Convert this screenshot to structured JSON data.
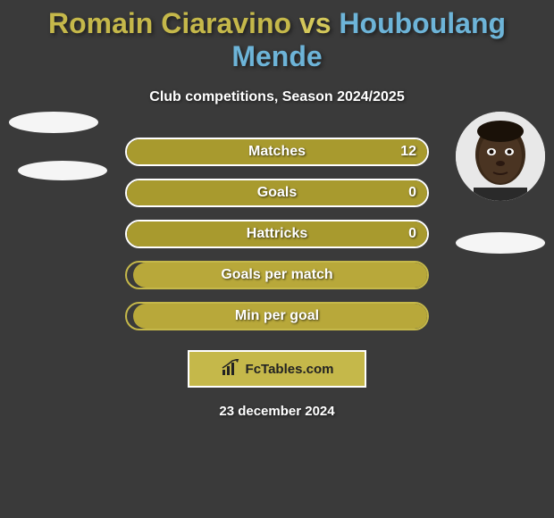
{
  "title": {
    "player1": "Romain Ciaravino",
    "vs": "vs",
    "player2": "Houboulang Mende",
    "color1": "#c5b84a",
    "color_vs": "#d4c85a",
    "color2": "#6db4d8"
  },
  "subtitle": "Club competitions, Season 2024/2025",
  "stats": [
    {
      "label": "Matches",
      "right_value": "12",
      "right_fill_pct": 100,
      "fill_color": "#a89a2e",
      "border_color": "#ffffff"
    },
    {
      "label": "Goals",
      "right_value": "0",
      "right_fill_pct": 100,
      "fill_color": "#a89a2e",
      "border_color": "#ffffff"
    },
    {
      "label": "Hattricks",
      "right_value": "0",
      "right_fill_pct": 100,
      "fill_color": "#a89a2e",
      "border_color": "#ffffff"
    },
    {
      "label": "Goals per match",
      "right_value": "",
      "right_fill_pct": 98,
      "fill_color": "#b8a83a",
      "border_color": "#c5b84a"
    },
    {
      "label": "Min per goal",
      "right_value": "",
      "right_fill_pct": 98,
      "fill_color": "#b8a83a",
      "border_color": "#c5b84a"
    }
  ],
  "footer": {
    "brand": "FcTables.com",
    "bg_color": "#c5b84a",
    "icon": "chart-icon"
  },
  "date": "23 december 2024",
  "avatars": {
    "left_bg": "#f0f0f0",
    "right_skin": "#3a2818"
  },
  "background_color": "#3a3a3a"
}
